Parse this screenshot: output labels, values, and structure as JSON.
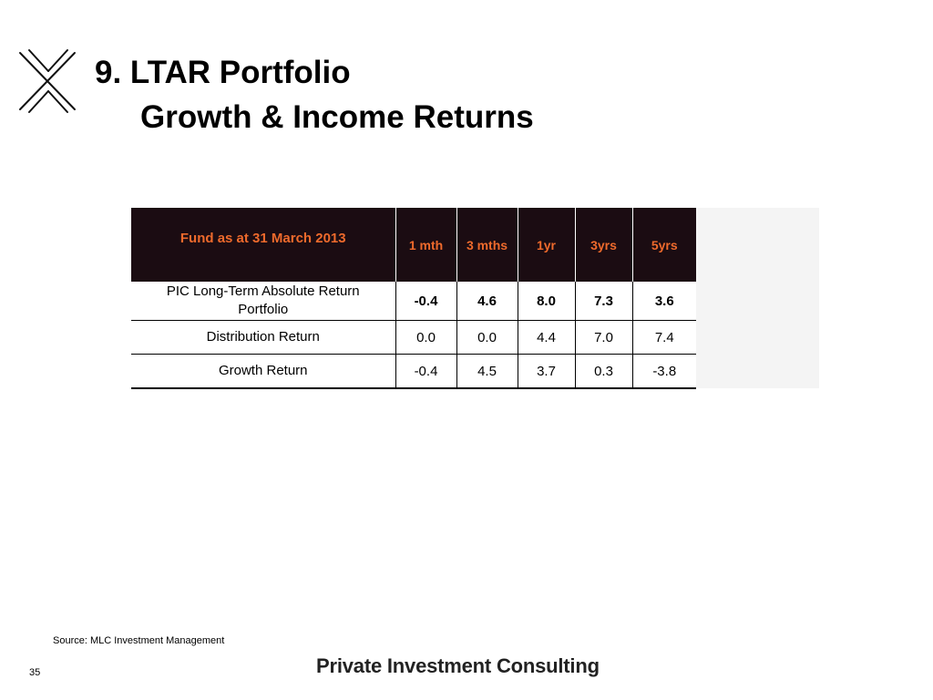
{
  "title": {
    "line1": "9. LTAR Portfolio",
    "line2": "Growth & Income Returns"
  },
  "table": {
    "headers": [
      "Fund as at 31 March 2013",
      "1 mth",
      "3 mths",
      "1yr",
      "3yrs",
      "5yrs"
    ],
    "rows": [
      {
        "label": "PIC Long-Term Absolute Return Portfolio",
        "values": [
          "-0.4",
          "4.6",
          "8.0",
          "7.3",
          "3.6"
        ]
      },
      {
        "label": "Distribution Return",
        "values": [
          "0.0",
          "0.0",
          "4.4",
          "7.0",
          "7.4"
        ]
      },
      {
        "label": "Growth Return",
        "values": [
          "-0.4",
          "4.5",
          "3.7",
          "0.3",
          "-3.8"
        ]
      }
    ]
  },
  "source": "Source: MLC Investment Management",
  "page_number": "35",
  "brand": "Private Investment Consulting",
  "colors": {
    "header_bg": "#1b0c12",
    "header_text": "#ee6a2c"
  },
  "icons": {
    "logo": "x-logo-icon"
  }
}
